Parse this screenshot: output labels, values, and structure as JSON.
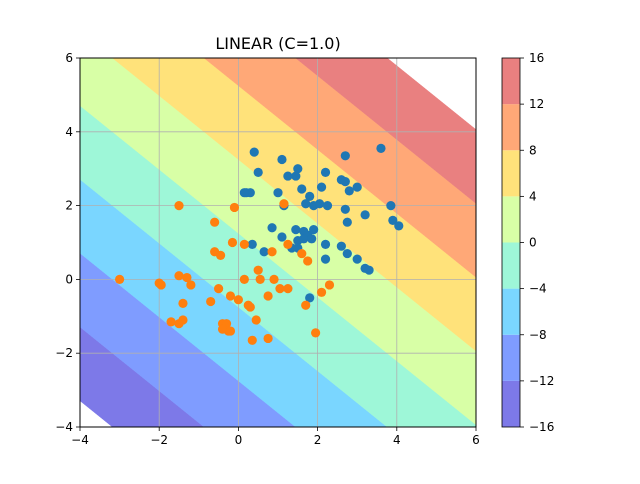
{
  "chart_data": {
    "type": "scatter",
    "title": "LINEAR (C=1.0)",
    "xlabel": "",
    "ylabel": "",
    "xlim": [
      -4,
      6
    ],
    "ylim": [
      -4,
      6
    ],
    "x_ticks": [
      -4,
      -2,
      0,
      2,
      4,
      6
    ],
    "y_ticks": [
      -4,
      -2,
      0,
      2,
      4,
      6
    ],
    "x_tick_labels": [
      "−4",
      "−2",
      "0",
      "2",
      "4",
      "6"
    ],
    "y_tick_labels": [
      "−4",
      "−2",
      "0",
      "2",
      "4",
      "6"
    ],
    "grid": true,
    "decision_function": {
      "kind": "linear",
      "w": [
        1.73,
        2.0
      ],
      "b": -2.5
    },
    "contour_levels": [
      -16,
      -12,
      -8,
      -4,
      0,
      4,
      8,
      12,
      16
    ],
    "contour_colors": [
      "#7d79e8",
      "#7f9cff",
      "#7ad6ff",
      "#9ef7d8",
      "#d8ffa6",
      "#ffe27a",
      "#ffa877",
      "#e98080"
    ],
    "colorbar": {
      "ticks": [
        -16,
        -12,
        -8,
        -4,
        0,
        4,
        8,
        12,
        16
      ],
      "tick_labels": [
        "−16",
        "−12",
        "−8",
        "−4",
        "0",
        "4",
        "8",
        "12",
        "16"
      ]
    },
    "series": [
      {
        "color": "#1f77b4",
        "points": [
          [
            0.4,
            3.45
          ],
          [
            0.5,
            2.9
          ],
          [
            1.1,
            3.25
          ],
          [
            1.5,
            3.0
          ],
          [
            1.45,
            2.8
          ],
          [
            1.25,
            2.8
          ],
          [
            1.6,
            2.45
          ],
          [
            2.2,
            2.9
          ],
          [
            2.7,
            3.35
          ],
          [
            3.6,
            3.55
          ],
          [
            0.2,
            2.35
          ],
          [
            0.3,
            2.35
          ],
          [
            0.15,
            2.35
          ],
          [
            1.0,
            2.35
          ],
          [
            1.15,
            2.0
          ],
          [
            2.1,
            2.5
          ],
          [
            2.6,
            2.7
          ],
          [
            2.7,
            2.65
          ],
          [
            2.8,
            2.4
          ],
          [
            3.0,
            2.5
          ],
          [
            1.7,
            2.05
          ],
          [
            1.8,
            2.25
          ],
          [
            1.9,
            2.0
          ],
          [
            2.05,
            2.05
          ],
          [
            2.25,
            2.0
          ],
          [
            2.7,
            1.9
          ],
          [
            3.2,
            1.75
          ],
          [
            3.85,
            2.0
          ],
          [
            3.9,
            1.6
          ],
          [
            4.05,
            1.45
          ],
          [
            2.75,
            1.55
          ],
          [
            0.85,
            1.4
          ],
          [
            1.1,
            1.15
          ],
          [
            1.45,
            1.35
          ],
          [
            1.65,
            1.3
          ],
          [
            1.75,
            1.2
          ],
          [
            1.9,
            1.35
          ],
          [
            1.65,
            1.1
          ],
          [
            1.85,
            1.1
          ],
          [
            1.5,
            1.05
          ],
          [
            0.35,
            0.95
          ],
          [
            0.65,
            0.75
          ],
          [
            1.35,
            0.85
          ],
          [
            1.5,
            0.85
          ],
          [
            2.2,
            0.95
          ],
          [
            2.6,
            0.9
          ],
          [
            2.75,
            0.7
          ],
          [
            3.0,
            0.55
          ],
          [
            3.2,
            0.3
          ],
          [
            3.3,
            0.25
          ],
          [
            2.2,
            0.55
          ],
          [
            1.8,
            -0.5
          ]
        ]
      },
      {
        "color": "#ff7f0e",
        "points": [
          [
            -1.5,
            2.0
          ],
          [
            -0.6,
            1.55
          ],
          [
            -0.1,
            1.95
          ],
          [
            1.15,
            2.05
          ],
          [
            -0.6,
            0.75
          ],
          [
            -0.45,
            0.65
          ],
          [
            -0.15,
            1.0
          ],
          [
            0.15,
            0.95
          ],
          [
            0.85,
            0.75
          ],
          [
            1.25,
            0.95
          ],
          [
            1.6,
            0.7
          ],
          [
            1.75,
            0.5
          ],
          [
            0.5,
            0.25
          ],
          [
            -3.0,
            0.0
          ],
          [
            -2.0,
            -0.1
          ],
          [
            -1.95,
            -0.15
          ],
          [
            -1.5,
            0.1
          ],
          [
            -1.3,
            0.05
          ],
          [
            -1.2,
            -0.15
          ],
          [
            0.15,
            0.0
          ],
          [
            0.55,
            0.0
          ],
          [
            0.9,
            0.0
          ],
          [
            -0.5,
            -0.25
          ],
          [
            -0.2,
            -0.45
          ],
          [
            0.0,
            -0.55
          ],
          [
            0.25,
            -0.7
          ],
          [
            0.75,
            -0.45
          ],
          [
            1.05,
            -0.25
          ],
          [
            1.25,
            -0.25
          ],
          [
            2.1,
            -0.35
          ],
          [
            2.3,
            -0.15
          ],
          [
            -0.7,
            -0.6
          ],
          [
            -1.4,
            -0.65
          ],
          [
            0.3,
            -0.75
          ],
          [
            1.7,
            -0.7
          ],
          [
            -1.7,
            -1.15
          ],
          [
            -1.5,
            -1.2
          ],
          [
            -1.4,
            -1.1
          ],
          [
            -0.4,
            -1.2
          ],
          [
            -0.3,
            -1.2
          ],
          [
            -0.4,
            -1.35
          ],
          [
            -0.25,
            -1.4
          ],
          [
            -0.2,
            -1.4
          ],
          [
            0.45,
            -1.1
          ],
          [
            0.35,
            -1.65
          ],
          [
            0.75,
            -1.6
          ],
          [
            1.95,
            -1.45
          ]
        ]
      }
    ]
  }
}
